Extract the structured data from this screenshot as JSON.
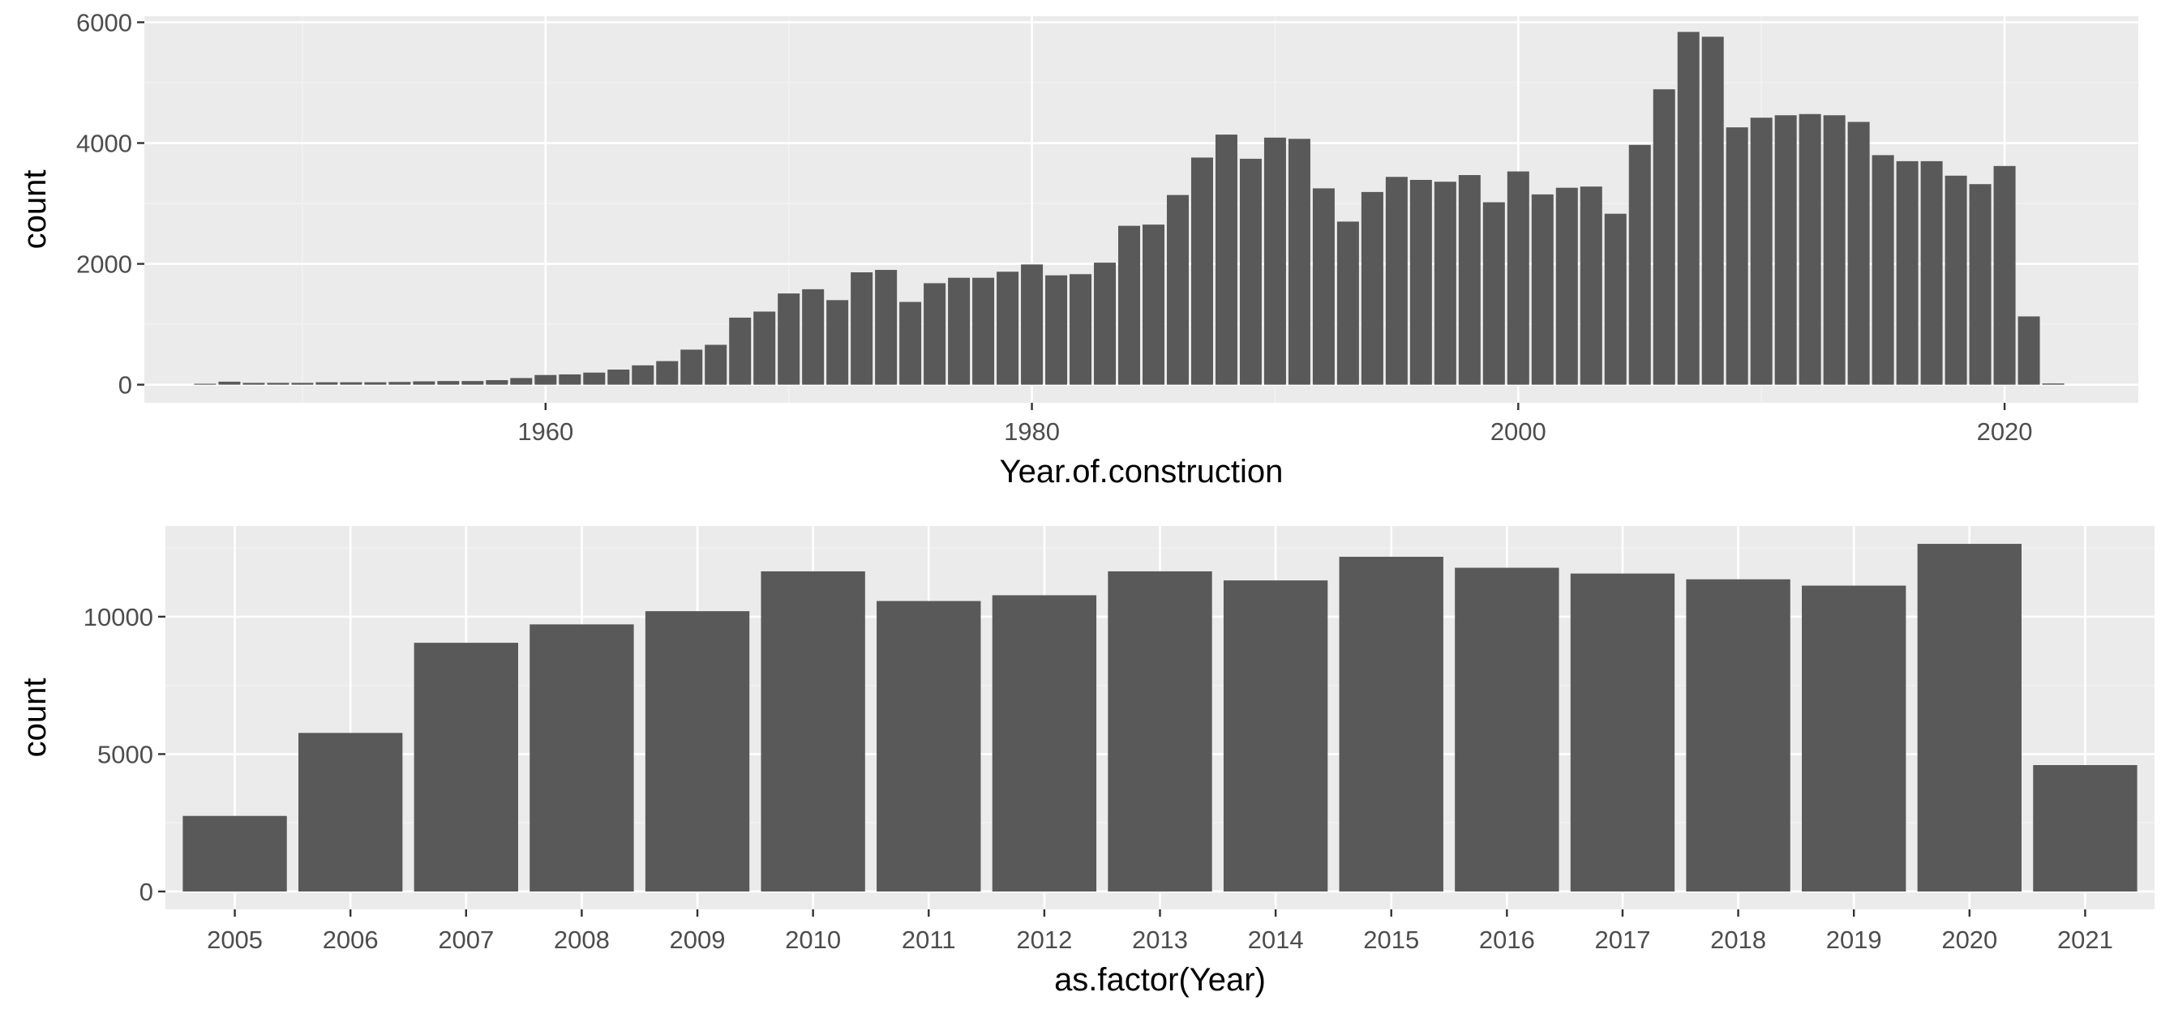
{
  "colors": {
    "panel_background": "#ebebeb",
    "grid_major": "#ffffff",
    "grid_minor": "#f3f3f3",
    "bar_fill": "#595959",
    "tick_text": "#4d4d4d"
  },
  "chart_data": [
    {
      "type": "bar",
      "title": "",
      "xlabel": "Year.of.construction",
      "ylabel": "count",
      "xlim": [
        1943.5,
        2025.5
      ],
      "ylim": [
        -300,
        6100
      ],
      "xticks": [
        1960,
        1980,
        2000,
        2020
      ],
      "yticks": [
        0,
        2000,
        4000,
        6000
      ],
      "xtick_labels": [
        "1960",
        "1980",
        "2000",
        "2020"
      ],
      "ytick_labels": [
        "0",
        "2000",
        "4000",
        "6000"
      ],
      "grid": true,
      "legend": "none",
      "x": [
        1946,
        1947,
        1948,
        1949,
        1950,
        1951,
        1952,
        1953,
        1954,
        1955,
        1956,
        1957,
        1958,
        1959,
        1960,
        1961,
        1962,
        1963,
        1964,
        1965,
        1966,
        1967,
        1968,
        1969,
        1970,
        1971,
        1972,
        1973,
        1974,
        1975,
        1976,
        1977,
        1978,
        1979,
        1980,
        1981,
        1982,
        1983,
        1984,
        1985,
        1986,
        1987,
        1988,
        1989,
        1990,
        1991,
        1992,
        1993,
        1994,
        1995,
        1996,
        1997,
        1998,
        1999,
        2000,
        2001,
        2002,
        2003,
        2004,
        2005,
        2006,
        2007,
        2008,
        2009,
        2010,
        2011,
        2012,
        2013,
        2014,
        2015,
        2016,
        2017,
        2018,
        2019,
        2020,
        2021,
        2022
      ],
      "values": [
        15,
        50,
        30,
        30,
        30,
        40,
        40,
        40,
        45,
        55,
        60,
        60,
        75,
        110,
        160,
        170,
        200,
        250,
        320,
        390,
        580,
        660,
        1110,
        1210,
        1510,
        1580,
        1400,
        1860,
        1900,
        1370,
        1680,
        1770,
        1770,
        1870,
        1990,
        1810,
        1830,
        2020,
        2630,
        2650,
        3140,
        3760,
        4140,
        3740,
        4090,
        4070,
        3250,
        2700,
        3190,
        3440,
        3390,
        3360,
        3470,
        3020,
        3530,
        3150,
        3260,
        3280,
        2830,
        3970,
        4890,
        5840,
        5760,
        4260,
        4420,
        4460,
        4480,
        4460,
        4350,
        3800,
        3700,
        3700,
        3460,
        3320,
        3620,
        1130,
        20
      ]
    },
    {
      "type": "bar",
      "title": "",
      "xlabel": "as.factor(Year)",
      "ylabel": "count",
      "ylim": [
        -650,
        13300
      ],
      "yticks": [
        0,
        5000,
        10000
      ],
      "ytick_labels": [
        "0",
        "5000",
        "10000"
      ],
      "grid": true,
      "legend": "none",
      "categories": [
        "2005",
        "2006",
        "2007",
        "2008",
        "2009",
        "2010",
        "2011",
        "2012",
        "2013",
        "2014",
        "2015",
        "2016",
        "2017",
        "2018",
        "2019",
        "2020",
        "2021"
      ],
      "values": [
        2750,
        5770,
        9050,
        9720,
        10200,
        11650,
        10570,
        10780,
        11650,
        11320,
        12180,
        11780,
        11570,
        11360,
        11130,
        12650,
        4600
      ]
    }
  ]
}
